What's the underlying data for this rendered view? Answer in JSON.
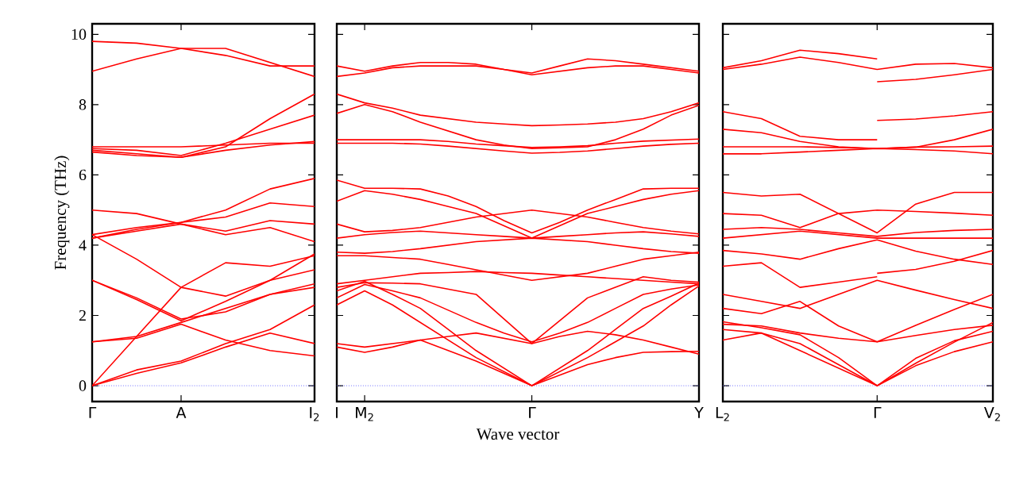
{
  "chart_data": [
    {
      "type": "line",
      "ylabel": "Frequency (THz)",
      "categories": [
        "Γ",
        null,
        "A",
        null,
        null,
        "I$_{2}$"
      ],
      "ylim": [
        -0.45,
        10.3
      ],
      "yticks": [
        0,
        2,
        4,
        6,
        8,
        10
      ],
      "ref_lines": [
        {
          "axis": "y",
          "value": 0,
          "color": "#6f6fff",
          "line_style": "dotted"
        }
      ],
      "marker": "none",
      "series": [
        {
          "color": "#ff0000",
          "values": [
            0,
            0.35,
            0.65,
            1.1,
            1.5,
            1.2
          ]
        },
        {
          "color": "#ff0000",
          "values": [
            0,
            0.45,
            0.7,
            1.2,
            1.6,
            2.3
          ]
        },
        {
          "color": "#ff0000",
          "values": [
            0,
            1.4,
            2.8,
            3.5,
            3.4,
            3.7
          ]
        },
        {
          "color": "#ff0000",
          "values": [
            1.25,
            1.35,
            1.75,
            1.3,
            1.0,
            0.85
          ]
        },
        {
          "color": "#ff0000",
          "values": [
            1.25,
            1.4,
            1.8,
            2.2,
            2.6,
            2.8
          ]
        },
        {
          "color": "#ff0000",
          "values": [
            3.0,
            2.5,
            1.9,
            2.1,
            2.6,
            2.9
          ]
        },
        {
          "color": "#ff0000",
          "values": [
            3.0,
            2.45,
            1.85,
            2.4,
            3.0,
            3.3
          ]
        },
        {
          "color": "#ff0000",
          "values": [
            4.3,
            3.6,
            2.8,
            2.55,
            3.0,
            3.75
          ]
        },
        {
          "color": "#ff0000",
          "values": [
            4.2,
            4.4,
            4.6,
            4.3,
            4.5,
            4.1
          ]
        },
        {
          "color": "#ff0000",
          "values": [
            4.2,
            4.45,
            4.65,
            4.8,
            5.2,
            5.1
          ]
        },
        {
          "color": "#ff0000",
          "values": [
            4.3,
            4.5,
            4.65,
            5.0,
            5.6,
            5.9
          ]
        },
        {
          "color": "#ff0000",
          "values": [
            5.0,
            4.9,
            4.6,
            4.4,
            4.7,
            4.6
          ]
        },
        {
          "color": "#ff0000",
          "values": [
            6.7,
            6.6,
            6.5,
            6.7,
            6.85,
            6.95
          ]
        },
        {
          "color": "#ff0000",
          "values": [
            6.75,
            6.7,
            6.55,
            6.9,
            7.3,
            7.7
          ]
        },
        {
          "color": "#ff0000",
          "values": [
            6.8,
            6.8,
            6.8,
            6.85,
            6.9,
            6.9
          ]
        },
        {
          "color": "#ff0000",
          "values": [
            6.65,
            6.55,
            6.5,
            6.8,
            7.6,
            8.3
          ]
        },
        {
          "color": "#ff0000",
          "values": [
            9.8,
            9.75,
            9.6,
            9.4,
            9.1,
            9.1
          ]
        },
        {
          "color": "#ff0000",
          "values": [
            8.95,
            9.3,
            9.6,
            9.6,
            9.2,
            8.8
          ]
        }
      ]
    },
    {
      "type": "line",
      "xlabel": "Wave vector",
      "tick_labels": "x",
      "categories": [
        "I",
        "M$_{2}$",
        null,
        null,
        null,
        null,
        null,
        "Γ",
        null,
        null,
        null,
        null,
        null,
        "Y"
      ],
      "ylim": [
        -0.45,
        10.3
      ],
      "yticks": [
        0,
        2,
        4,
        6,
        8,
        10
      ],
      "ref_lines": [
        {
          "axis": "y",
          "value": 0,
          "color": "#6f6fff",
          "line_style": "dotted"
        }
      ],
      "marker": "none",
      "series": [
        {
          "color": "#ff0000",
          "values": [
            9.1,
            8.95,
            9.1,
            9.2,
            9.2,
            9.15,
            9.0,
            8.9,
            9.1,
            9.3,
            9.25,
            9.15,
            9.05,
            8.95
          ]
        },
        {
          "color": "#ff0000",
          "values": [
            8.8,
            8.9,
            9.05,
            9.1,
            9.1,
            9.1,
            9.0,
            8.85,
            8.95,
            9.05,
            9.1,
            9.1,
            9.0,
            8.9
          ]
        },
        {
          "color": "#ff0000",
          "values": [
            8.3,
            8.05,
            7.9,
            7.7,
            7.6,
            7.5,
            7.45,
            7.4,
            7.42,
            7.45,
            7.5,
            7.6,
            7.8,
            8.05
          ]
        },
        {
          "color": "#ff0000",
          "values": [
            7.75,
            8.0,
            7.8,
            7.5,
            7.25,
            7.0,
            6.85,
            6.75,
            6.77,
            6.8,
            7.0,
            7.3,
            7.7,
            7.98
          ]
        },
        {
          "color": "#ff0000",
          "values": [
            7.0,
            7.0,
            7.0,
            7.0,
            6.95,
            6.88,
            6.83,
            6.78,
            6.8,
            6.83,
            6.9,
            6.96,
            6.99,
            7.02
          ]
        },
        {
          "color": "#ff0000",
          "values": [
            6.9,
            6.9,
            6.9,
            6.88,
            6.82,
            6.75,
            6.68,
            6.62,
            6.64,
            6.68,
            6.75,
            6.82,
            6.87,
            6.9
          ]
        },
        {
          "color": "#ff0000",
          "values": [
            5.85,
            5.62,
            5.62,
            5.6,
            5.4,
            5.1,
            4.7,
            4.35,
            4.65,
            5.0,
            5.3,
            5.6,
            5.62,
            5.62
          ]
        },
        {
          "color": "#ff0000",
          "values": [
            5.25,
            5.55,
            5.45,
            5.3,
            5.1,
            4.9,
            4.55,
            4.2,
            4.55,
            4.9,
            5.1,
            5.3,
            5.45,
            5.55
          ]
        },
        {
          "color": "#ff0000",
          "values": [
            4.6,
            4.38,
            4.42,
            4.5,
            4.65,
            4.8,
            4.9,
            5.0,
            4.9,
            4.8,
            4.65,
            4.5,
            4.4,
            4.32
          ]
        },
        {
          "color": "#ff0000",
          "values": [
            4.2,
            4.3,
            4.36,
            4.4,
            4.35,
            4.3,
            4.25,
            4.2,
            4.25,
            4.3,
            4.35,
            4.38,
            4.32,
            4.25
          ]
        },
        {
          "color": "#ff0000",
          "values": [
            3.8,
            3.77,
            3.82,
            3.9,
            4.0,
            4.1,
            4.15,
            4.2,
            4.15,
            4.1,
            4.0,
            3.9,
            3.82,
            3.77
          ]
        },
        {
          "color": "#ff0000",
          "values": [
            3.7,
            3.7,
            3.65,
            3.6,
            3.45,
            3.3,
            3.15,
            3.0,
            3.1,
            3.2,
            3.4,
            3.6,
            3.7,
            3.8
          ]
        },
        {
          "color": "#ff0000",
          "values": [
            2.9,
            3.0,
            3.1,
            3.2,
            3.22,
            3.25,
            3.22,
            3.2,
            3.15,
            3.1,
            3.05,
            3.0,
            2.95,
            2.9
          ]
        },
        {
          "color": "#ff0000",
          "values": [
            2.8,
            2.93,
            2.92,
            2.9,
            2.75,
            2.6,
            1.9,
            1.2,
            1.85,
            2.5,
            2.8,
            3.1,
            3.0,
            2.95
          ]
        },
        {
          "color": "#ff0000",
          "values": [
            2.5,
            2.88,
            2.7,
            2.5,
            2.15,
            1.8,
            1.5,
            1.25,
            1.5,
            1.8,
            2.2,
            2.6,
            2.75,
            2.87
          ]
        },
        {
          "color": "#ff0000",
          "values": [
            2.7,
            2.97,
            2.6,
            2.2,
            1.6,
            1.0,
            0.5,
            0,
            0.5,
            1.0,
            1.6,
            2.2,
            2.55,
            2.92
          ]
        },
        {
          "color": "#ff0000",
          "values": [
            2.3,
            2.7,
            2.3,
            1.8,
            1.3,
            0.8,
            0.4,
            0,
            0.4,
            0.8,
            1.25,
            1.7,
            2.3,
            2.84
          ]
        },
        {
          "color": "#ff0000",
          "values": [
            1.2,
            1.1,
            1.2,
            1.3,
            1.0,
            0.7,
            0.35,
            0,
            0.3,
            0.6,
            0.8,
            0.95,
            0.97,
            0.98
          ]
        },
        {
          "color": "#ff0000",
          "values": [
            1.1,
            0.95,
            1.1,
            1.3,
            1.4,
            1.5,
            1.35,
            1.2,
            1.4,
            1.55,
            1.45,
            1.3,
            1.1,
            0.9
          ]
        }
      ]
    },
    {
      "type": "line",
      "tick_labels": "x",
      "categories": [
        "L$_{2}$",
        null,
        null,
        null,
        "Γ",
        null,
        null,
        "V$_{2}$"
      ],
      "ylim": [
        -0.45,
        10.3
      ],
      "yticks": [
        0,
        2,
        4,
        6,
        8,
        10
      ],
      "ref_lines": [
        {
          "axis": "y",
          "value": 0,
          "color": "#6f6fff",
          "line_style": "dotted"
        }
      ],
      "marker": "none",
      "series": [
        {
          "color": "#ff0000",
          "values": [
            9.05,
            9.25,
            9.55,
            9.45,
            9.3,
            null,
            null,
            null
          ]
        },
        {
          "color": "#ff0000",
          "values": [
            9.0,
            9.15,
            9.35,
            9.2,
            9.0,
            9.15,
            9.17,
            9.05
          ]
        },
        {
          "color": "#ff0000",
          "values": [
            null,
            null,
            null,
            null,
            8.65,
            8.72,
            8.85,
            9.0
          ]
        },
        {
          "color": "#ff0000",
          "values": [
            7.8,
            7.6,
            7.1,
            7.0,
            7.0,
            null,
            null,
            null
          ]
        },
        {
          "color": "#ff0000",
          "values": [
            null,
            null,
            null,
            null,
            7.55,
            7.59,
            7.68,
            7.8
          ]
        },
        {
          "color": "#ff0000",
          "values": [
            7.3,
            7.2,
            6.95,
            6.8,
            6.75,
            6.79,
            7.0,
            7.3
          ]
        },
        {
          "color": "#ff0000",
          "values": [
            6.8,
            6.8,
            6.8,
            6.78,
            6.75,
            6.79,
            6.8,
            6.82
          ]
        },
        {
          "color": "#ff0000",
          "values": [
            6.6,
            6.6,
            6.65,
            6.7,
            6.75,
            6.72,
            6.68,
            6.6
          ]
        },
        {
          "color": "#ff0000",
          "values": [
            5.5,
            5.4,
            5.45,
            4.9,
            4.35,
            5.17,
            5.5,
            5.5
          ]
        },
        {
          "color": "#ff0000",
          "values": [
            4.9,
            4.85,
            4.5,
            4.9,
            5.0,
            4.96,
            4.91,
            4.85
          ]
        },
        {
          "color": "#ff0000",
          "values": [
            4.45,
            4.5,
            4.45,
            4.35,
            4.25,
            4.36,
            4.42,
            4.45
          ]
        },
        {
          "color": "#ff0000",
          "values": [
            4.2,
            4.3,
            4.4,
            4.3,
            4.2,
            4.2,
            4.2,
            4.2
          ]
        },
        {
          "color": "#ff0000",
          "values": [
            3.85,
            3.75,
            3.6,
            3.9,
            4.15,
            3.83,
            3.6,
            3.45
          ]
        },
        {
          "color": "#ff0000",
          "values": [
            3.4,
            3.5,
            2.8,
            2.95,
            3.1,
            null,
            null,
            null
          ]
        },
        {
          "color": "#ff0000",
          "values": [
            null,
            null,
            null,
            null,
            3.2,
            3.31,
            3.54,
            3.85
          ]
        },
        {
          "color": "#ff0000",
          "values": [
            2.6,
            2.4,
            2.2,
            2.6,
            3.0,
            2.72,
            2.45,
            2.2
          ]
        },
        {
          "color": "#ff0000",
          "values": [
            2.2,
            2.05,
            2.4,
            1.7,
            1.25,
            1.72,
            2.17,
            2.6
          ]
        },
        {
          "color": "#ff0000",
          "values": [
            1.75,
            1.7,
            1.5,
            1.35,
            1.25,
            1.43,
            1.6,
            1.72
          ]
        },
        {
          "color": "#ff0000",
          "values": [
            1.82,
            1.65,
            1.45,
            0.8,
            0,
            0.64,
            1.24,
            1.8
          ]
        },
        {
          "color": "#ff0000",
          "values": [
            1.6,
            1.5,
            1.2,
            0.6,
            0,
            0.78,
            1.28,
            1.55
          ]
        },
        {
          "color": "#ff0000",
          "values": [
            1.3,
            1.5,
            1.0,
            0.5,
            0,
            0.57,
            0.97,
            1.25
          ]
        }
      ]
    }
  ]
}
